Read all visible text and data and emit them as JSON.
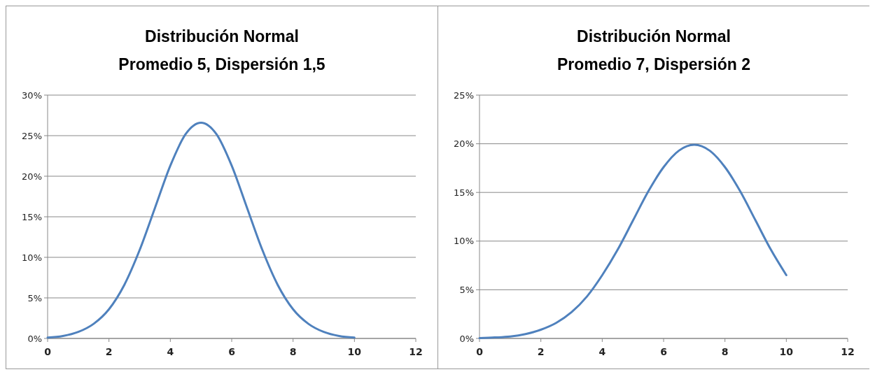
{
  "chart_data": [
    {
      "type": "line",
      "title": "Distribución Normal",
      "subtitle": "Promedio 5, Dispersión 1,5",
      "x": [
        0,
        0.5,
        1,
        1.5,
        2,
        2.5,
        3,
        3.5,
        4,
        4.5,
        5,
        5.5,
        6,
        6.5,
        7,
        7.5,
        8,
        8.5,
        9,
        9.5,
        10
      ],
      "series": [
        {
          "color": "#4f81bd",
          "values": [
            0.1,
            0.3,
            0.8,
            1.8,
            3.6,
            6.6,
            10.9,
            16.1,
            21.3,
            25.2,
            26.6,
            25.2,
            21.3,
            16.1,
            10.9,
            6.6,
            3.6,
            1.8,
            0.8,
            0.3,
            0.1
          ]
        }
      ],
      "xlim": [
        0,
        12
      ],
      "xticks": [
        0,
        2,
        4,
        6,
        8,
        10,
        12
      ],
      "ylim": [
        0,
        30
      ],
      "yticks": [
        {
          "value": 0,
          "label": "0%"
        },
        {
          "value": 5,
          "label": "5%"
        },
        {
          "value": 10,
          "label": "10%"
        },
        {
          "value": 15,
          "label": "15%"
        },
        {
          "value": 20,
          "label": "20%"
        },
        {
          "value": 25,
          "label": "25%"
        },
        {
          "value": 30,
          "label": "30%"
        }
      ],
      "grid": "y",
      "marker": "none",
      "line_style": "solid"
    },
    {
      "type": "line",
      "title": "Distribución Normal",
      "subtitle": "Promedio 7, Dispersión 2",
      "x": [
        0,
        0.5,
        1,
        1.5,
        2,
        2.5,
        3,
        3.5,
        4,
        4.5,
        5,
        5.5,
        6,
        6.5,
        7,
        7.5,
        8,
        8.5,
        9,
        9.5,
        10
      ],
      "series": [
        {
          "color": "#4f81bd",
          "values": [
            0.04,
            0.1,
            0.2,
            0.45,
            0.9,
            1.6,
            2.7,
            4.3,
            6.5,
            9.1,
            12.1,
            15.1,
            17.6,
            19.3,
            19.9,
            19.3,
            17.6,
            15.1,
            12.1,
            9.1,
            6.5
          ]
        }
      ],
      "xlim": [
        0,
        12
      ],
      "xticks": [
        0,
        2,
        4,
        6,
        8,
        10,
        12
      ],
      "ylim": [
        0,
        25
      ],
      "yticks": [
        {
          "value": 0,
          "label": "0%"
        },
        {
          "value": 5,
          "label": "5%"
        },
        {
          "value": 10,
          "label": "10%"
        },
        {
          "value": 15,
          "label": "15%"
        },
        {
          "value": 20,
          "label": "20%"
        },
        {
          "value": 25,
          "label": "25%"
        }
      ],
      "grid": "y",
      "marker": "none",
      "line_style": "solid"
    }
  ]
}
